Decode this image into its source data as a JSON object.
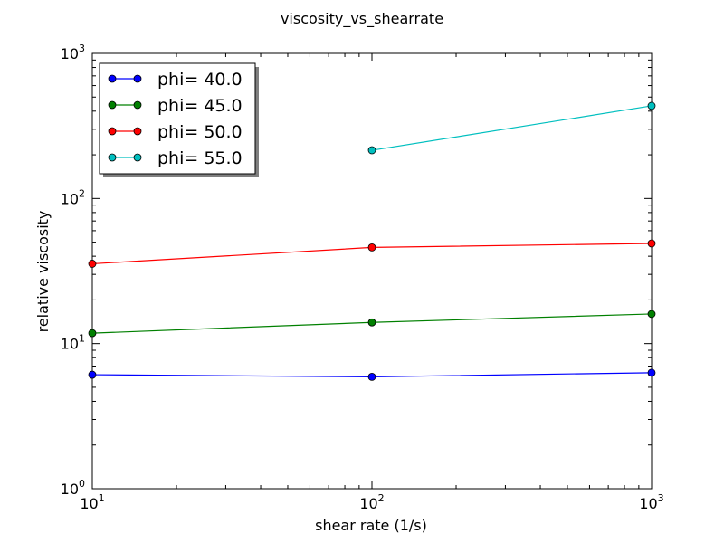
{
  "chart_data": {
    "type": "line",
    "title": "viscosity_vs_shearrate",
    "xlabel": "shear rate (1/s)",
    "ylabel": "relative viscosity",
    "xscale": "log",
    "yscale": "log",
    "xlim": [
      10,
      1000
    ],
    "ylim": [
      1,
      1000
    ],
    "x_ticks": [
      {
        "value": 10,
        "base": "10",
        "exp": "1"
      },
      {
        "value": 100,
        "base": "10",
        "exp": "2"
      },
      {
        "value": 1000,
        "base": "10",
        "exp": "3"
      }
    ],
    "y_ticks": [
      {
        "value": 1,
        "base": "10",
        "exp": "0"
      },
      {
        "value": 10,
        "base": "10",
        "exp": "1"
      },
      {
        "value": 100,
        "base": "10",
        "exp": "2"
      },
      {
        "value": 1000,
        "base": "10",
        "exp": "3"
      }
    ],
    "grid": false,
    "legend_position": "top-left",
    "series": [
      {
        "name": "phi= 40.0",
        "color": "#0000ff",
        "x": [
          10,
          100,
          1000
        ],
        "y": [
          6.1,
          5.9,
          6.3
        ]
      },
      {
        "name": "phi= 45.0",
        "color": "#008000",
        "x": [
          10,
          100,
          1000
        ],
        "y": [
          11.8,
          14.0,
          16.0
        ]
      },
      {
        "name": "phi= 50.0",
        "color": "#ff0000",
        "x": [
          10,
          100,
          1000
        ],
        "y": [
          35.5,
          46.0,
          49.0
        ]
      },
      {
        "name": "phi= 55.0",
        "color": "#00bfbf",
        "x": [
          100,
          1000
        ],
        "y": [
          215.0,
          435.0
        ]
      }
    ]
  }
}
